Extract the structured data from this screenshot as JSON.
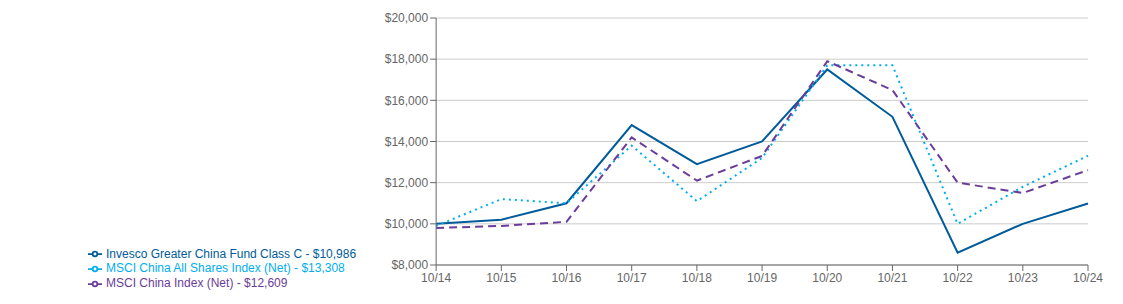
{
  "chart_data": {
    "type": "line",
    "categories": [
      "10/14",
      "10/15",
      "10/16",
      "10/17",
      "10/18",
      "10/19",
      "10/20",
      "10/21",
      "10/22",
      "10/23",
      "10/24"
    ],
    "series": [
      {
        "name": "Invesco Greater China Fund Class C - $10,986",
        "color": "#005B9A",
        "line_style": "solid",
        "values": [
          10000,
          10200,
          11000,
          14800,
          12900,
          14000,
          17500,
          15200,
          8600,
          10000,
          10986
        ]
      },
      {
        "name": "MSCI China All Shares Index (Net) - $13,308",
        "color": "#00AEEF",
        "line_style": "dotted",
        "values": [
          9900,
          11200,
          11000,
          13800,
          11100,
          13200,
          17700,
          17700,
          10000,
          11800,
          13308
        ]
      },
      {
        "name": "MSCI China Index (Net) - $12,609",
        "color": "#6A3D9A",
        "line_style": "dashed",
        "values": [
          9800,
          9900,
          10100,
          14200,
          12100,
          13300,
          17900,
          16500,
          12000,
          11500,
          12609
        ]
      }
    ],
    "ylim": [
      8000,
      20000
    ],
    "yticks": [
      {
        "value": 8000,
        "label": "$8,000"
      },
      {
        "value": 10000,
        "label": "$10,000"
      },
      {
        "value": 12000,
        "label": "$12,000"
      },
      {
        "value": 14000,
        "label": "$14,000"
      },
      {
        "value": 16000,
        "label": "$16,000"
      },
      {
        "value": 18000,
        "label": "$18,000"
      },
      {
        "value": 20000,
        "label": "$20,000"
      }
    ],
    "grid": true,
    "legend": "bottom"
  }
}
